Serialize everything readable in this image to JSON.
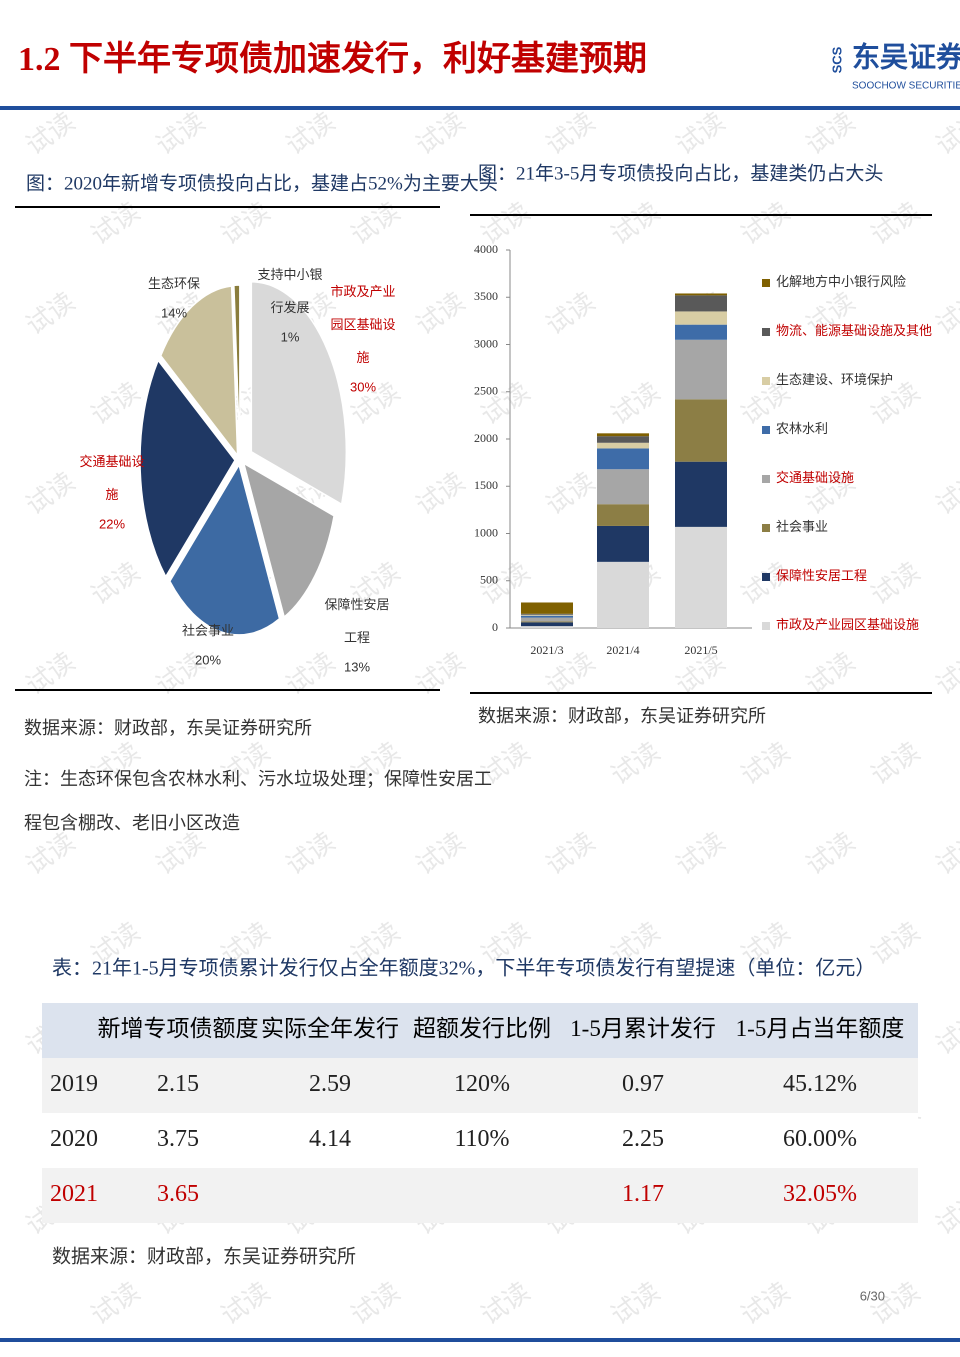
{
  "header": {
    "title": "1.2 下半年专项债加速发行，利好基建预期",
    "logo": "东吴证券",
    "logo_mark": "SCS",
    "logo_sub": "SOOCHOW SECURITIES"
  },
  "watermark": "试读",
  "chart_data": [
    {
      "type": "pie",
      "title": "图：2020年新增专项债投向占比，基建占52%为主要大头",
      "categories": [
        "市政及产业园区基础设施",
        "保障性安居工程",
        "社会事业",
        "交通基础设施",
        "生态环保",
        "支持中小银行发展"
      ],
      "values": [
        30,
        13,
        20,
        22,
        14,
        1
      ],
      "value_labels": [
        "30%",
        "13%",
        "20%",
        "22%",
        "14%",
        "1%"
      ],
      "colors": [
        "#d9d9d9",
        "#a6a6a6",
        "#3d6aa3",
        "#1f3864",
        "#c9c09b",
        "#8a7d3c"
      ],
      "label_colors": [
        "#c00000",
        "#333333",
        "#333333",
        "#c00000",
        "#333333",
        "#333333"
      ],
      "source": "数据来源：财政部，东吴证券研究所",
      "note": "注：生态环保包含农林水利、污水垃圾处理；保障性安居工程包含棚改、老旧小区改造"
    },
    {
      "type": "bar",
      "stacked": true,
      "title": "图：21年3-5月专项债投向占比，基建类仍占大头",
      "categories": [
        "2021/3",
        "2021/4",
        "2021/5"
      ],
      "series": [
        {
          "name": "市政及产业园区基础设施",
          "color": "#d9d9d9",
          "label_color": "#c00000",
          "values": [
            20,
            700,
            1070
          ]
        },
        {
          "name": "保障性安居工程",
          "color": "#1f3864",
          "label_color": "#c00000",
          "values": [
            40,
            380,
            690
          ]
        },
        {
          "name": "社会事业",
          "color": "#8c7e45",
          "label_color": "#333333",
          "values": [
            10,
            230,
            660
          ]
        },
        {
          "name": "交通基础设施",
          "color": "#a6a6a6",
          "label_color": "#c00000",
          "values": [
            40,
            370,
            630
          ]
        },
        {
          "name": "农林水利",
          "color": "#3e6ca8",
          "label_color": "#333333",
          "values": [
            20,
            220,
            160
          ]
        },
        {
          "name": "生态建设、环境保护",
          "color": "#d8cda4",
          "label_color": "#333333",
          "values": [
            10,
            60,
            140
          ]
        },
        {
          "name": "物流、能源基础设施及其他",
          "color": "#595959",
          "label_color": "#c00000",
          "values": [
            10,
            70,
            170
          ]
        },
        {
          "name": "化解地方中小银行风险",
          "color": "#7f6000",
          "label_color": "#333333",
          "values": [
            120,
            30,
            20
          ]
        }
      ],
      "ylim": [
        0,
        4000
      ],
      "yticks": [
        0,
        500,
        1000,
        1500,
        2000,
        2500,
        3000,
        3500,
        4000
      ],
      "source": "数据来源：财政部，东吴证券研究所"
    }
  ],
  "table": {
    "title": "表：21年1-5月专项债累计发行仅占全年额度32%，下半年专项债发行有望提速（单位：亿元）",
    "header": [
      null,
      "新增专项债额度",
      "实际全年发行",
      "超额发行比例",
      "1-5月累计发行",
      "1-5月占当年额度"
    ],
    "rows": [
      [
        "2019",
        "2.15",
        "2.59",
        "120%",
        "0.97",
        "45.12%"
      ],
      [
        "2020",
        "3.75",
        "4.14",
        "110%",
        "2.25",
        "60.00%"
      ],
      [
        "2021",
        "3.65",
        null,
        null,
        "1.17",
        "32.05%"
      ]
    ],
    "source": "数据来源：财政部，东吴证券研究所"
  },
  "page_number": "6/30"
}
